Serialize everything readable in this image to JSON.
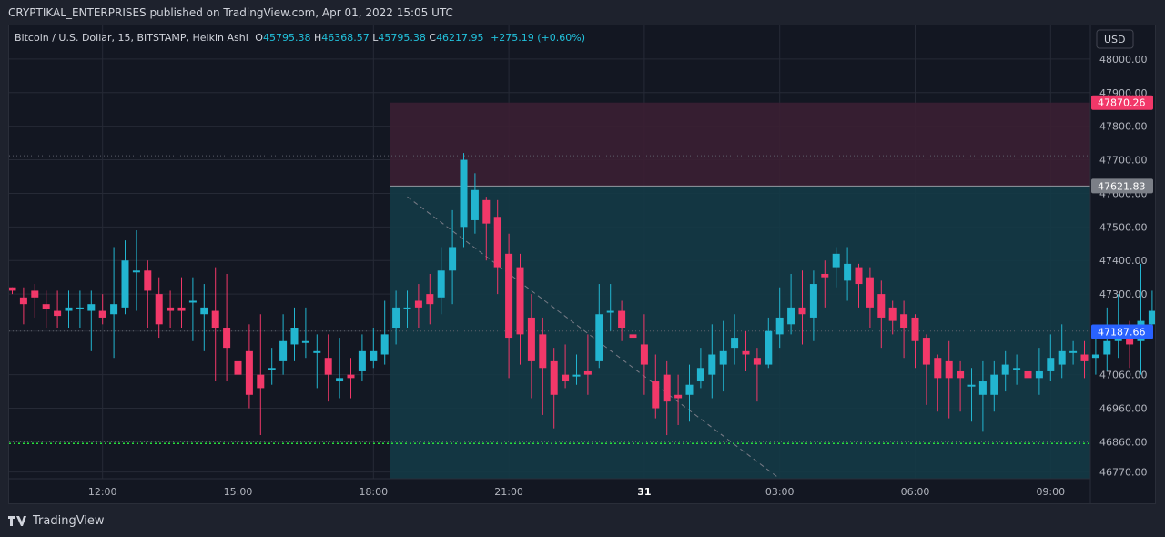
{
  "header": {
    "publisher_line": "CRYPTIKAL_ENTERPRISES published on TradingView.com, Apr 01, 2022 15:05 UTC"
  },
  "legend": {
    "symbol": "Bitcoin / U.S. Dollar, 15, BITSTAMP, Heikin Ashi",
    "open_label": "O",
    "open_value": "45795.38",
    "high_label": "H",
    "high_value": "46368.57",
    "low_label": "L",
    "low_value": "45795.38",
    "close_label": "C",
    "close_value": "46217.95",
    "change": "+275.19 (+0.60%)"
  },
  "footer": {
    "brand": "TradingView"
  },
  "colors": {
    "bg": "#131722",
    "grid": "#262a36",
    "up": "#22b5d0",
    "down": "#f23869",
    "text": "#d1d4dc",
    "axis_text": "#b2b5be",
    "stop_zone": "#3b1f33",
    "target_zone": "#143a46",
    "stop_label": "#f23869",
    "entry_label": "#7b7f87",
    "price_label": "#2962ff",
    "green_line": "#27e03d"
  },
  "chart_data": {
    "type": "candlestick",
    "style": "Heikin Ashi",
    "currency": "USD",
    "y_ticks": [
      46770,
      46860,
      46960,
      47060,
      47190,
      47300,
      47400,
      47500,
      47600,
      47700,
      47800,
      47900,
      48000
    ],
    "y_tick_labels": [
      "46770.00",
      "46860.00",
      "46960.00",
      "47060.00",
      "47190.00",
      "47300.00",
      "47400.00",
      "47500.00",
      "47600.00",
      "47700.00",
      "47800.00",
      "47900.00",
      "48000.00"
    ],
    "top_partial_tick": "48",
    "ylim": [
      46750,
      48100
    ],
    "x_ticks": [
      {
        "label": "12:00",
        "bar": 8
      },
      {
        "label": "15:00",
        "bar": 20
      },
      {
        "label": "18:00",
        "bar": 32
      },
      {
        "label": "21:00",
        "bar": 44
      },
      {
        "label": "31",
        "bar": 56
      },
      {
        "label": "03:00",
        "bar": 68
      },
      {
        "label": "06:00",
        "bar": 80
      },
      {
        "label": "09:00",
        "bar": 92
      }
    ],
    "stop_price": "47870.26",
    "entry_price": "47621.83",
    "last_price": "47187.66",
    "position": {
      "start_bar": 33.5,
      "top": 47870.26,
      "entry": 47621.83
    },
    "green_line": 46855,
    "dotted_levels": [
      47712,
      47190,
      46860
    ],
    "diag": {
      "from_bar": 35,
      "from_price": 47590,
      "to_bar": 68,
      "to_price": 46750
    },
    "ohlc": [
      [
        47320,
        47310,
        47320,
        47300
      ],
      [
        47290,
        47270,
        47320,
        47210
      ],
      [
        47310,
        47290,
        47330,
        47230
      ],
      [
        47270,
        47255,
        47310,
        47200
      ],
      [
        47250,
        47235,
        47310,
        47200
      ],
      [
        47250,
        47260,
        47310,
        47200
      ],
      [
        47255,
        47260,
        47310,
        47200
      ],
      [
        47250,
        47270,
        47310,
        47130
      ],
      [
        47250,
        47230,
        47300,
        47210
      ],
      [
        47240,
        47270,
        47440,
        47110
      ],
      [
        47260,
        47400,
        47460,
        47240
      ],
      [
        47370,
        47370,
        47490,
        47250
      ],
      [
        47370,
        47310,
        47400,
        47200
      ],
      [
        47300,
        47210,
        47350,
        47170
      ],
      [
        47260,
        47250,
        47310,
        47200
      ],
      [
        47260,
        47250,
        47350,
        47200
      ],
      [
        47280,
        47280,
        47350,
        47160
      ],
      [
        47240,
        47260,
        47330,
        47130
      ],
      [
        47250,
        47200,
        47380,
        47040
      ],
      [
        47200,
        47140,
        47360,
        47040
      ],
      [
        47100,
        47060,
        47180,
        46960
      ],
      [
        47130,
        47000,
        47210,
        46960
      ],
      [
        47060,
        47020,
        47240,
        46880
      ],
      [
        47080,
        47080,
        47140,
        47030
      ],
      [
        47100,
        47160,
        47240,
        47060
      ],
      [
        47150,
        47200,
        47260,
        47100
      ],
      [
        47160,
        47160,
        47260,
        47110
      ],
      [
        47130,
        47130,
        47180,
        47020
      ],
      [
        47110,
        47060,
        47180,
        46980
      ],
      [
        47040,
        47050,
        47170,
        46990
      ],
      [
        47060,
        47050,
        47110,
        46990
      ],
      [
        47070,
        47130,
        47180,
        47040
      ],
      [
        47100,
        47130,
        47200,
        47080
      ],
      [
        47120,
        47180,
        47280,
        47090
      ],
      [
        47200,
        47260,
        47310,
        47150
      ],
      [
        47260,
        47260,
        47310,
        47200
      ],
      [
        47280,
        47260,
        47330,
        47200
      ],
      [
        47300,
        47270,
        47360,
        47210
      ],
      [
        47290,
        47370,
        47440,
        47240
      ],
      [
        47370,
        47440,
        47550,
        47270
      ],
      [
        47500,
        47700,
        47720,
        47440
      ],
      [
        47520,
        47610,
        47660,
        47480
      ],
      [
        47580,
        47510,
        47590,
        47400
      ],
      [
        47530,
        47380,
        47580,
        47300
      ],
      [
        47420,
        47170,
        47480,
        47050
      ],
      [
        47380,
        47180,
        47420,
        47090
      ],
      [
        47230,
        47100,
        47300,
        46990
      ],
      [
        47180,
        47080,
        47230,
        46940
      ],
      [
        47100,
        47000,
        47140,
        46900
      ],
      [
        47060,
        47040,
        47150,
        47020
      ],
      [
        47060,
        47060,
        47120,
        47030
      ],
      [
        47070,
        47060,
        47180,
        47000
      ],
      [
        47100,
        47240,
        47330,
        47080
      ],
      [
        47250,
        47250,
        47330,
        47190
      ],
      [
        47250,
        47200,
        47280,
        47160
      ],
      [
        47180,
        47170,
        47230,
        47050
      ],
      [
        47150,
        47090,
        47240,
        47000
      ],
      [
        47040,
        46960,
        47120,
        46930
      ],
      [
        47060,
        46980,
        47100,
        46880
      ],
      [
        47000,
        46990,
        47060,
        46910
      ],
      [
        47000,
        47030,
        47090,
        46920
      ],
      [
        47040,
        47080,
        47140,
        47020
      ],
      [
        47060,
        47120,
        47210,
        46990
      ],
      [
        47090,
        47130,
        47220,
        47010
      ],
      [
        47140,
        47170,
        47240,
        47090
      ],
      [
        47130,
        47120,
        47190,
        47070
      ],
      [
        47110,
        47090,
        47140,
        46980
      ],
      [
        47090,
        47190,
        47230,
        47080
      ],
      [
        47180,
        47230,
        47320,
        47140
      ],
      [
        47210,
        47260,
        47360,
        47180
      ],
      [
        47260,
        47240,
        47370,
        47150
      ],
      [
        47230,
        47330,
        47370,
        47160
      ],
      [
        47360,
        47350,
        47400,
        47260
      ],
      [
        47380,
        47420,
        47440,
        47320
      ],
      [
        47340,
        47390,
        47440,
        47280
      ],
      [
        47380,
        47330,
        47390,
        47260
      ],
      [
        47350,
        47260,
        47380,
        47200
      ],
      [
        47300,
        47230,
        47340,
        47140
      ],
      [
        47260,
        47220,
        47280,
        47180
      ],
      [
        47240,
        47200,
        47280,
        47110
      ],
      [
        47230,
        47160,
        47240,
        47080
      ],
      [
        47170,
        47090,
        47180,
        46970
      ],
      [
        47110,
        47050,
        47120,
        46950
      ],
      [
        47100,
        47050,
        47160,
        46930
      ],
      [
        47070,
        47050,
        47100,
        46950
      ],
      [
        47030,
        47030,
        47080,
        46920
      ],
      [
        47000,
        47040,
        47100,
        46890
      ],
      [
        47000,
        47060,
        47100,
        46950
      ],
      [
        47060,
        47090,
        47130,
        47010
      ],
      [
        47080,
        47080,
        47120,
        47030
      ],
      [
        47070,
        47050,
        47090,
        47000
      ],
      [
        47050,
        47070,
        47140,
        47000
      ],
      [
        47070,
        47110,
        47180,
        47040
      ],
      [
        47090,
        47130,
        47210,
        47050
      ],
      [
        47130,
        47130,
        47160,
        47090
      ],
      [
        47120,
        47100,
        47160,
        47050
      ],
      [
        47110,
        47120,
        47200,
        47060
      ],
      [
        47120,
        47160,
        47260,
        47070
      ],
      [
        47160,
        47180,
        47300,
        47110
      ],
      [
        47180,
        47150,
        47220,
        47080
      ],
      [
        47160,
        47220,
        47390,
        47060
      ],
      [
        47210,
        47250,
        47310,
        47180
      ],
      [
        47240,
        47210,
        47260,
        47180
      ]
    ]
  }
}
